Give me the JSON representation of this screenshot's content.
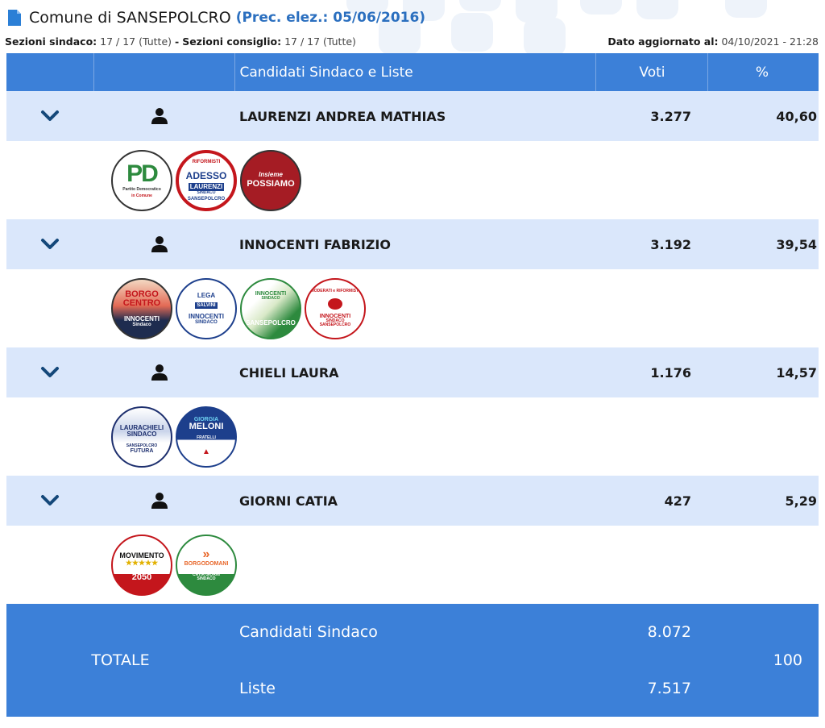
{
  "header": {
    "title": "Comune di SANSEPOLCRO",
    "prec": "(Prec. elez.: 05/06/2016)"
  },
  "info": {
    "sez_sindaco_label": "Sezioni sindaco:",
    "sez_sindaco_value": "17 / 17 (Tutte)",
    "sep": "-",
    "sez_consiglio_label": "Sezioni consiglio:",
    "sez_consiglio_value": "17 / 17 (Tutte)",
    "updated_label": "Dato aggiornato al:",
    "updated_value": "04/10/2021 - 21:28"
  },
  "table": {
    "col_candidates": "Candidati Sindaco e Liste",
    "col_votes": "Voti",
    "col_pct": "%"
  },
  "candidates": [
    {
      "name": "LAURENZI ANDREA MATHIAS",
      "votes": "3.277",
      "pct": "40,60",
      "logos": [
        {
          "name": "pd-logo",
          "l1": "PD",
          "l2": "Partito Democratico",
          "l3": "in Comune"
        },
        {
          "name": "adesso-logo",
          "l1": "RIFORMISTI",
          "l2": "ADESSO",
          "l3": "LAURENZI",
          "l4": "SINDACO",
          "l5": "SANSEPOLCRO"
        },
        {
          "name": "insieme-possiamo-logo",
          "l1": "Insieme",
          "l2": "POSSIAMO"
        }
      ]
    },
    {
      "name": "INNOCENTI FABRIZIO",
      "votes": "3.192",
      "pct": "39,54",
      "logos": [
        {
          "name": "borgo-al-centro-logo",
          "l1": "BORGO",
          "l2": "CENTRO",
          "l3": "INNOCENTI",
          "l4": "Sindaco"
        },
        {
          "name": "lega-fi-logo",
          "l1": "LEGA",
          "l2": "SALVINI",
          "l3": "INNOCENTI",
          "l4": "SINDACO"
        },
        {
          "name": "innocenti-cittadini-logo",
          "l1": "INNOCENTI",
          "l2": "SINDACO",
          "l3": "SANSEPOLCRO"
        },
        {
          "name": "moderati-riformisti-logo",
          "l1": "MODERATI e RIFORMISTI",
          "l2": "INNOCENTI",
          "l3": "SINDACO",
          "l4": "SANSEPOLCRO"
        }
      ]
    },
    {
      "name": "CHIELI LAURA",
      "votes": "1.176",
      "pct": "14,57",
      "logos": [
        {
          "name": "laura-chieli-logo",
          "l1": "LAURACHIELI",
          "l2": "SINDACO",
          "l3": "SANSEPOLCRO",
          "l4": "FUTURA"
        },
        {
          "name": "fratelli-italia-logo",
          "l1": "GIORGIA",
          "l2": "MELONI",
          "l3": "FRATELLI",
          "l4": "d'ITALIA"
        }
      ]
    },
    {
      "name": "GIORNI CATIA",
      "votes": "427",
      "pct": "5,29",
      "logos": [
        {
          "name": "movimento-2050-logo",
          "l1": "MOVIMENTO",
          "l2": "★★★★★",
          "l3": "2050"
        },
        {
          "name": "borgodomani-logo",
          "l1": "BORGODOMANI",
          "l2": "CATIA GIORNI",
          "l3": "SINDACO"
        }
      ]
    }
  ],
  "totals": {
    "label": "TOTALE",
    "cand_label": "Candidati Sindaco",
    "cand_value": "8.072",
    "list_label": "Liste",
    "list_value": "7.517",
    "pct": "100"
  },
  "colors": {
    "header_blue": "#3c80d8",
    "row_light_blue": "#dae7fb",
    "chevron_navy": "#14487a",
    "prec_link": "#2b6fbf"
  },
  "icons": {
    "expand": "chevron-down-icon",
    "candidate": "person-icon",
    "document": "document-icon"
  }
}
